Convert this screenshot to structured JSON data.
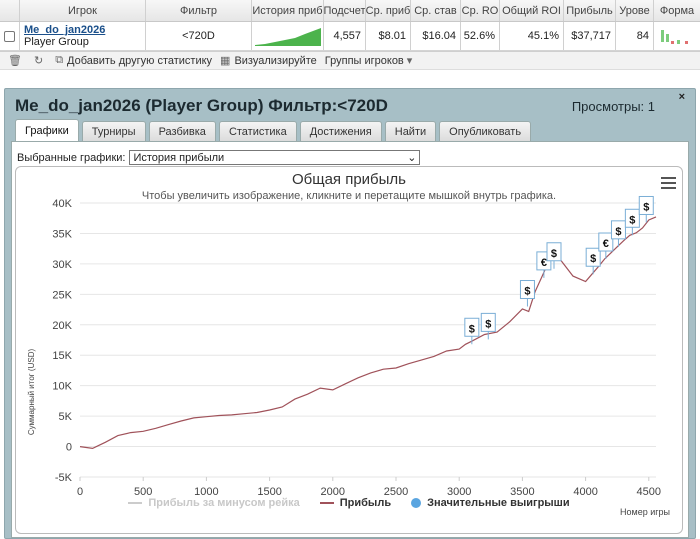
{
  "table": {
    "headers": [
      "Игрок",
      "Фильтр",
      "История приб",
      "Подсчет",
      "Ср. приб",
      "Ср. став",
      "Ср. RO",
      "Общий ROI",
      "Прибыль",
      "Урове",
      "Форма"
    ],
    "row": {
      "player_name": "Me_do_jan2026",
      "player_group": "Player Group",
      "filter": "<720D",
      "count": "4,557",
      "avg_profit": "$8.01",
      "avg_stake": "$16.04",
      "avg_roi": "52.6%",
      "total_roi": "45.1%",
      "profit": "$37,717",
      "level": "84"
    }
  },
  "toolbar": {
    "add_stats": "Добавить другую статистику",
    "visualize": "Визуализируйте",
    "player_groups": "Группы игроков"
  },
  "panel": {
    "title": "Me_do_jan2026 (Player Group) Фильтр:<720D",
    "views": "Просмотры: 1",
    "close": "×",
    "tabs": [
      "Графики",
      "Турниры",
      "Разбивка",
      "Статистика",
      "Достижения",
      "Найти",
      "Опубликовать"
    ],
    "selector_label": "Выбранные графики:",
    "selector_value": "История прибыли"
  },
  "colors": {
    "profit_line": "#a0525a",
    "rake_line": "#cccccc",
    "marker": "#5aa5e0",
    "accent_green": "#3aa640"
  },
  "chart_data": {
    "type": "line",
    "title": "Общая прибыль",
    "subtitle": "Чтобы увеличить изображение, кликните и перетащите мышкой внутрь графика.",
    "xlabel": "Номер игры",
    "ylabel": "Суммарный итог (USD)",
    "xlim": [
      0,
      4557
    ],
    "ylim": [
      -5000,
      40000
    ],
    "xticks": [
      0,
      500,
      1000,
      1500,
      2000,
      2500,
      3000,
      3500,
      4000,
      4500
    ],
    "yticks": [
      -5000,
      0,
      5000,
      10000,
      15000,
      20000,
      25000,
      30000,
      35000,
      40000
    ],
    "ytick_labels": [
      "-5K",
      "0",
      "5K",
      "10K",
      "15K",
      "20K",
      "25K",
      "30K",
      "35K",
      "40K"
    ],
    "legend": [
      "Прибыль за минусом рейка",
      "Прибыль",
      "Значительные выигрыши"
    ],
    "series": [
      {
        "name": "Прибыль",
        "x": [
          0,
          100,
          150,
          200,
          300,
          400,
          500,
          600,
          700,
          800,
          900,
          1000,
          1100,
          1200,
          1300,
          1400,
          1500,
          1600,
          1700,
          1800,
          1900,
          2000,
          2100,
          2200,
          2300,
          2400,
          2500,
          2600,
          2700,
          2800,
          2900,
          3000,
          3050,
          3100,
          3200,
          3300,
          3400,
          3500,
          3550,
          3600,
          3650,
          3700,
          3750,
          3800,
          3900,
          4000,
          4050,
          4100,
          4150,
          4200,
          4250,
          4300,
          4350,
          4400,
          4450,
          4500,
          4557
        ],
        "y": [
          0,
          -300,
          200,
          700,
          1800,
          2300,
          2500,
          3000,
          3600,
          4200,
          4700,
          4900,
          5100,
          5200,
          5400,
          5600,
          6000,
          6500,
          7800,
          8600,
          9600,
          9300,
          10300,
          11300,
          12100,
          12700,
          12900,
          13600,
          14200,
          14800,
          15700,
          16000,
          16800,
          17300,
          18400,
          18800,
          20500,
          22600,
          22200,
          25400,
          27700,
          30000,
          31200,
          30700,
          28000,
          27100,
          28300,
          29500,
          30800,
          31800,
          32800,
          33800,
          34700,
          35100,
          35900,
          37200,
          37717
        ]
      }
    ],
    "big_wins": [
      {
        "x": 3100,
        "y": 16800,
        "symbol": "$"
      },
      {
        "x": 3230,
        "y": 17600,
        "symbol": "$"
      },
      {
        "x": 3540,
        "y": 23000,
        "symbol": "$"
      },
      {
        "x": 3670,
        "y": 27700,
        "symbol": "€"
      },
      {
        "x": 3750,
        "y": 29200,
        "symbol": "$"
      },
      {
        "x": 4060,
        "y": 28300,
        "symbol": "$"
      },
      {
        "x": 4160,
        "y": 30800,
        "symbol": "€"
      },
      {
        "x": 4260,
        "y": 32800,
        "symbol": "$"
      },
      {
        "x": 4370,
        "y": 34700,
        "symbol": "$"
      },
      {
        "x": 4480,
        "y": 36800,
        "symbol": "$"
      }
    ]
  }
}
